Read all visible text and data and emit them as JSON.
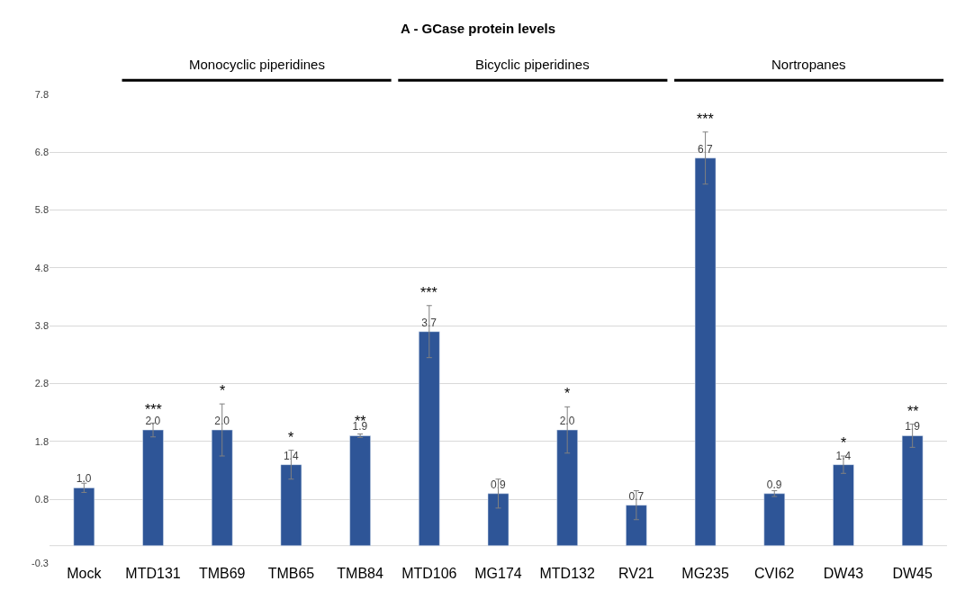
{
  "chart_data": {
    "type": "bar",
    "title": "A - GCase protein levels",
    "categories": [
      "Mock",
      "MTD131",
      "TMB69",
      "TMB65",
      "TMB84",
      "MTD106",
      "MG174",
      "MTD132",
      "RV21",
      "MG235",
      "CVI62",
      "DW43",
      "DW45"
    ],
    "values": [
      1.0,
      2.0,
      2.0,
      1.4,
      1.9,
      3.7,
      0.9,
      2.0,
      0.7,
      6.7,
      0.9,
      1.4,
      1.9
    ],
    "value_labels": [
      "1.0",
      "2.0",
      "2.0",
      "1.4",
      "1.9",
      "3.7",
      "0.9",
      "2.0",
      "0.7",
      "6.7",
      "0.9",
      "1.4",
      "1.9"
    ],
    "errors": [
      0.08,
      0.12,
      0.45,
      0.25,
      0.03,
      0.45,
      0.25,
      0.4,
      0.25,
      0.45,
      0.05,
      0.15,
      0.2
    ],
    "color": "#2e5597",
    "ylim": [
      -0.3,
      7.8
    ],
    "yticks": [
      -0.3,
      0.8,
      1.8,
      2.8,
      3.8,
      4.8,
      5.8,
      6.8,
      7.8
    ],
    "grid": "y",
    "ref_lines": [
      {
        "axis": "y",
        "value": 0,
        "color": "#d9d9d9"
      }
    ],
    "annotations": [
      "Monocyclic piperidines",
      "Bicyclic piperidines",
      "Nortropanes",
      {
        "text": "***",
        "x": "MTD131",
        "y": 2.0
      },
      {
        "text": "*",
        "x": "TMB69",
        "y": 2.0
      },
      {
        "text": "*",
        "x": "TMB65",
        "y": 1.4
      },
      {
        "text": "**",
        "x": "TMB84",
        "y": 1.9
      },
      {
        "text": "***",
        "x": "MTD106",
        "y": 3.7
      },
      {
        "text": "*",
        "x": "MTD132",
        "y": 2.0
      },
      {
        "text": "***",
        "x": "MG235",
        "y": 6.7
      },
      {
        "text": "*",
        "x": "DW43",
        "y": 1.4
      },
      {
        "text": "**",
        "x": "DW45",
        "y": 1.9
      }
    ]
  }
}
